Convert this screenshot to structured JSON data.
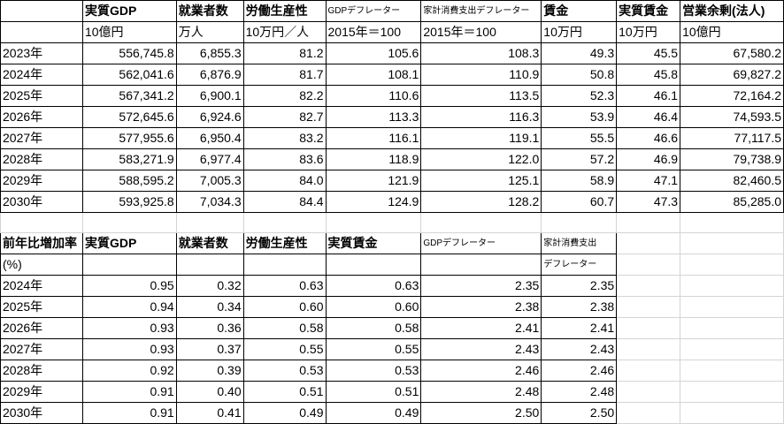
{
  "table1": {
    "headers": [
      "",
      "実質GDP",
      "就業者数",
      "労働生産性",
      "GDPデフレーター",
      "家計消費支出デフレーター",
      "賃金",
      "実質賃金",
      "営業余剰(法人)"
    ],
    "units": [
      "",
      "10億円",
      "万人",
      "10万円／人",
      "2015年＝100",
      "2015年＝100",
      "10万円",
      "10万円",
      "10億円"
    ],
    "rows": [
      [
        "2023年",
        "556,745.8",
        "6,855.3",
        "81.2",
        "105.6",
        "108.3",
        "49.3",
        "45.5",
        "67,580.2"
      ],
      [
        "2024年",
        "562,041.6",
        "6,876.9",
        "81.7",
        "108.1",
        "110.9",
        "50.8",
        "45.8",
        "69,827.2"
      ],
      [
        "2025年",
        "567,341.2",
        "6,900.1",
        "82.2",
        "110.6",
        "113.5",
        "52.3",
        "46.1",
        "72,164.2"
      ],
      [
        "2026年",
        "572,645.6",
        "6,924.6",
        "82.7",
        "113.3",
        "116.3",
        "53.9",
        "46.4",
        "74,593.5"
      ],
      [
        "2027年",
        "577,955.6",
        "6,950.4",
        "83.2",
        "116.1",
        "119.1",
        "55.5",
        "46.6",
        "77,117.5"
      ],
      [
        "2028年",
        "583,271.9",
        "6,977.4",
        "83.6",
        "118.9",
        "122.0",
        "57.2",
        "46.9",
        "79,738.9"
      ],
      [
        "2029年",
        "588,595.2",
        "7,005.3",
        "84.0",
        "121.9",
        "125.1",
        "58.9",
        "47.1",
        "82,460.5"
      ],
      [
        "2030年",
        "593,925.8",
        "7,034.3",
        "84.4",
        "124.9",
        "128.2",
        "60.7",
        "47.3",
        "85,285.0"
      ]
    ]
  },
  "table2": {
    "headers": [
      "前年比増加率",
      "実質GDP",
      "就業者数",
      "労働生産性",
      "実質賃金",
      "GDPデフレーター",
      "家計消費支出"
    ],
    "units": [
      "(%)",
      "",
      "",
      "",
      "",
      "",
      "デフレーター"
    ],
    "rows": [
      [
        "2024年",
        "0.95",
        "0.32",
        "0.63",
        "0.63",
        "2.35",
        "2.35"
      ],
      [
        "2025年",
        "0.94",
        "0.34",
        "0.60",
        "0.60",
        "2.38",
        "2.38"
      ],
      [
        "2026年",
        "0.93",
        "0.36",
        "0.58",
        "0.58",
        "2.41",
        "2.41"
      ],
      [
        "2027年",
        "0.93",
        "0.37",
        "0.55",
        "0.55",
        "2.43",
        "2.43"
      ],
      [
        "2028年",
        "0.92",
        "0.39",
        "0.53",
        "0.53",
        "2.46",
        "2.46"
      ],
      [
        "2029年",
        "0.91",
        "0.40",
        "0.51",
        "0.51",
        "2.48",
        "2.48"
      ],
      [
        "2030年",
        "0.91",
        "0.41",
        "0.49",
        "0.49",
        "2.50",
        "2.50"
      ]
    ]
  }
}
